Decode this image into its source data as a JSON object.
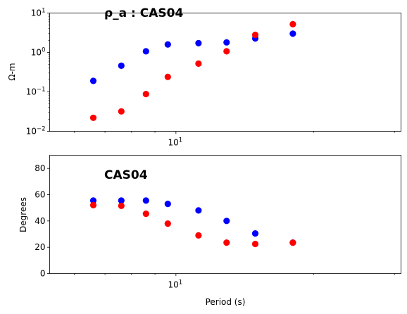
{
  "chart_data": [
    {
      "type": "scatter",
      "title": "ρ_a : CAS04",
      "xlabel": "",
      "ylabel": "Ω-m",
      "xscale": "log",
      "yscale": "log",
      "xlim": [
        5.3,
        31
      ],
      "ylim": [
        0.01,
        10
      ],
      "xticks": [
        {
          "value": 10,
          "base": "10",
          "exp": "1"
        }
      ],
      "yticks": [
        {
          "value": 0.01,
          "base": "10",
          "exp": "−2"
        },
        {
          "value": 0.1,
          "base": "10",
          "exp": "−1"
        },
        {
          "value": 1,
          "base": "10",
          "exp": "0"
        },
        {
          "value": 10,
          "base": "10",
          "exp": "1"
        }
      ],
      "grid": false,
      "series": [
        {
          "color": "#0000ff",
          "x": [
            6.6,
            7.6,
            8.6,
            9.6,
            11.2,
            12.9,
            14.9,
            18.0
          ],
          "y": [
            0.19,
            0.46,
            1.07,
            1.6,
            1.72,
            1.8,
            2.28,
            3.0
          ]
        },
        {
          "color": "#ff0000",
          "x": [
            6.6,
            7.6,
            8.6,
            9.6,
            11.2,
            12.9,
            14.9,
            18.0
          ],
          "y": [
            0.022,
            0.032,
            0.088,
            0.24,
            0.52,
            1.07,
            2.8,
            5.2
          ]
        }
      ]
    },
    {
      "type": "scatter",
      "title": "CAS04",
      "xlabel": "Period (s)",
      "ylabel": "Degrees",
      "xscale": "log",
      "yscale": "linear",
      "xlim": [
        5.3,
        31
      ],
      "ylim": [
        0,
        90
      ],
      "xticks": [
        {
          "value": 10,
          "base": "10",
          "exp": "1"
        }
      ],
      "yticks": [
        {
          "value": 0,
          "label": "0"
        },
        {
          "value": 20,
          "label": "20"
        },
        {
          "value": 40,
          "label": "40"
        },
        {
          "value": 60,
          "label": "60"
        },
        {
          "value": 80,
          "label": "80"
        }
      ],
      "grid": false,
      "series": [
        {
          "color": "#0000ff",
          "x": [
            6.6,
            7.6,
            8.6,
            9.6,
            11.2,
            12.9,
            14.9,
            18.0
          ],
          "y": [
            55.5,
            55.5,
            55.5,
            53,
            48,
            40,
            30.5,
            23.5
          ]
        },
        {
          "color": "#ff0000",
          "x": [
            6.6,
            7.6,
            8.6,
            9.6,
            11.2,
            12.9,
            14.9,
            18.0
          ],
          "y": [
            52,
            51.5,
            45.5,
            38,
            29,
            23.5,
            22.5,
            23.5
          ]
        }
      ]
    }
  ]
}
